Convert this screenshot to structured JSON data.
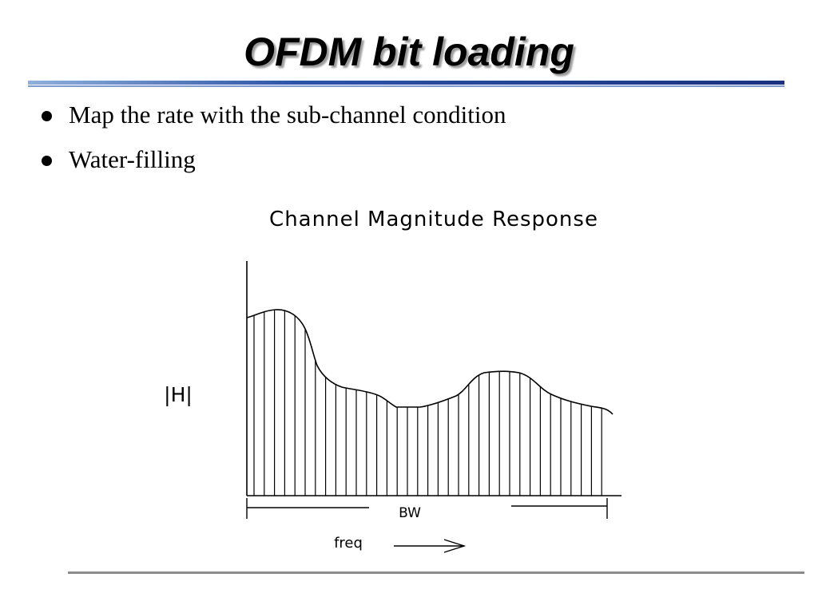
{
  "slide": {
    "title": "OFDM bit loading",
    "bullets": [
      "Map the rate with the sub-channel condition",
      "Water-filling"
    ]
  },
  "diagram": {
    "title": "Channel Magnitude Response",
    "y_label": "|H|",
    "bandwidth_label": "BW",
    "freq_label": "freq"
  },
  "colors": {
    "title_rule_dark": "#1f3a8a",
    "title_rule_light": "#b8c8e8",
    "footer_rule": "#8c8c8c"
  }
}
